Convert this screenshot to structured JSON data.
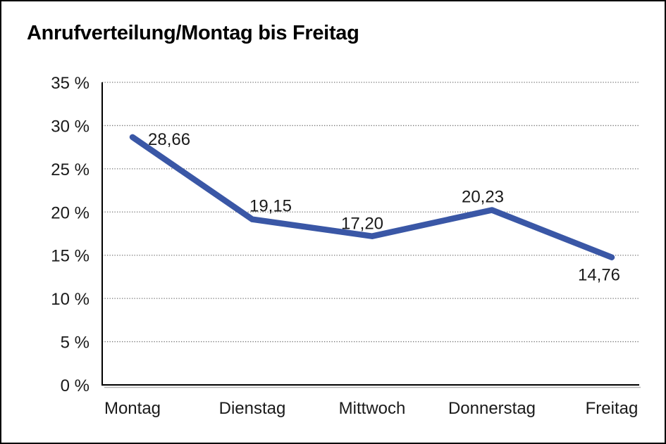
{
  "title": "Anrufverteilung/Montag bis Freitag",
  "chart_data": {
    "type": "line",
    "title": "Anrufverteilung/Montag bis Freitag",
    "categories": [
      "Montag",
      "Dienstag",
      "Mittwoch",
      "Donnerstag",
      "Freitag"
    ],
    "values": [
      28.66,
      19.15,
      17.2,
      20.23,
      14.76
    ],
    "data_labels": [
      "28,66",
      "19,15",
      "17,20",
      "20,23",
      "14,76"
    ],
    "series_name": "Anrufverteilung",
    "xlabel": "",
    "ylabel": "",
    "ylim": [
      0,
      35
    ],
    "ytick_step": 5,
    "ytick_labels": [
      "0 %",
      "5 %",
      "10 %",
      "15 %",
      "20 %",
      "25 %",
      "30 %",
      "35 %"
    ],
    "grid": "horizontal-dotted",
    "legend_position": "none",
    "colors": {
      "line": "#3A57A6",
      "axis": "#000000",
      "axis_shadow": "#b5b5b5",
      "gridline": "#757575",
      "text": "#1a1a1a",
      "background": "#ffffff",
      "border": "#000000"
    }
  }
}
